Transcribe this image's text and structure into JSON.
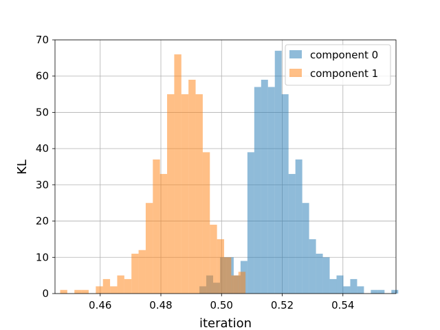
{
  "chart_data": {
    "type": "bar",
    "title": "",
    "xlabel": "iteration",
    "ylabel": "KL",
    "xlim": [
      0.4451,
      0.5575
    ],
    "ylim": [
      0,
      70
    ],
    "xticks": [
      0.46,
      0.48,
      0.5,
      0.52,
      0.54
    ],
    "xtick_labels": [
      "0.46",
      "0.48",
      "0.50",
      "0.52",
      "0.54"
    ],
    "yticks": [
      0,
      10,
      20,
      30,
      40,
      50,
      60,
      70
    ],
    "ytick_labels": [
      "0",
      "10",
      "20",
      "30",
      "40",
      "50",
      "60",
      "70"
    ],
    "grid": true,
    "legend_position": "top-right",
    "series": [
      {
        "name": "component 0",
        "color": "#1f77b4",
        "alpha": 0.5,
        "bin_start": 0.4927,
        "bin_width": 0.00226,
        "counts": [
          2,
          5,
          3,
          10,
          10,
          5,
          9,
          39,
          57,
          59,
          57,
          67,
          55,
          33,
          37,
          25,
          15,
          11,
          10,
          4,
          5,
          2,
          4,
          2,
          0,
          1,
          1,
          0,
          1
        ]
      },
      {
        "name": "component 1",
        "color": "#ff7f0e",
        "alpha": 0.5,
        "bin_start": 0.4468,
        "bin_width": 0.00235,
        "counts": [
          1,
          0,
          1,
          1,
          0,
          2,
          4,
          2,
          5,
          4,
          11,
          12,
          25,
          37,
          33,
          55,
          66,
          55,
          59,
          55,
          39,
          19,
          15,
          10,
          5,
          6
        ]
      }
    ]
  }
}
